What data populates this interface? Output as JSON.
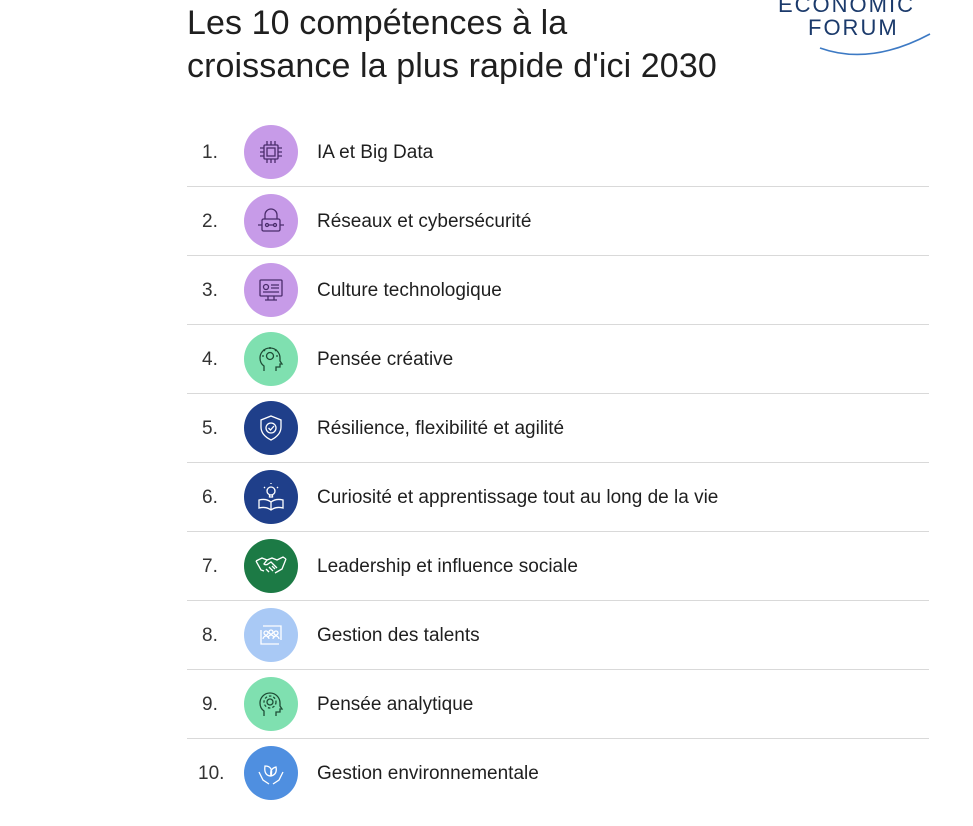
{
  "header": {
    "title_line1": "Les 10 compétences à la",
    "title_line2": "croissance la plus rapide d'ici 2030"
  },
  "logo": {
    "word1": "ECONOMIC",
    "word2": "FORUM"
  },
  "skills": [
    {
      "rank": "1.",
      "label": "IA et Big Data",
      "icon": "ai-chip-icon",
      "color": "#c79be8"
    },
    {
      "rank": "2.",
      "label": "Réseaux et cybersécurité",
      "icon": "network-lock-icon",
      "color": "#c79be8"
    },
    {
      "rank": "3.",
      "label": "Culture technologique",
      "icon": "monitor-icon",
      "color": "#c79be8"
    },
    {
      "rank": "4.",
      "label": "Pensée créative",
      "icon": "creative-head-icon",
      "color": "#7fe0b0"
    },
    {
      "rank": "5.",
      "label": "Résilience, flexibilité et agilité",
      "icon": "shield-check-icon",
      "color": "#1f3f8a"
    },
    {
      "rank": "6.",
      "label": "Curiosité et apprentissage tout au long de la vie",
      "icon": "book-bulb-icon",
      "color": "#1f3f8a"
    },
    {
      "rank": "7.",
      "label": "Leadership et influence sociale",
      "icon": "handshake-icon",
      "color": "#1c7a45"
    },
    {
      "rank": "8.",
      "label": "Gestion des talents",
      "icon": "people-cycle-icon",
      "color": "#a9c9f5"
    },
    {
      "rank": "9.",
      "label": "Pensée analytique",
      "icon": "gear-head-icon",
      "color": "#7fe0b0"
    },
    {
      "rank": "10.",
      "label": "Gestion environnementale",
      "icon": "leaf-hands-icon",
      "color": "#4f8fe0"
    }
  ]
}
